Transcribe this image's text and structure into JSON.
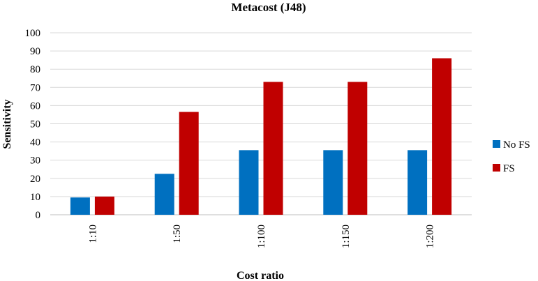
{
  "chart_data": {
    "type": "bar",
    "title": "Metacost (J48)",
    "xlabel": "Cost ratio",
    "ylabel": "Sensitivity",
    "ylim": [
      0,
      100
    ],
    "yticks": [
      0,
      10,
      20,
      30,
      40,
      50,
      60,
      70,
      80,
      90,
      100
    ],
    "categories": [
      "1:10",
      "1:50",
      "1:100",
      "1:150",
      "1:200"
    ],
    "series": [
      {
        "name": "No FS",
        "color": "#0070C0",
        "values": [
          9.5,
          22.5,
          35.5,
          35.5,
          35.5
        ]
      },
      {
        "name": "FS",
        "color": "#C00000",
        "values": [
          10,
          56.5,
          73,
          73,
          86
        ]
      }
    ],
    "grid": true,
    "legend": "right"
  }
}
